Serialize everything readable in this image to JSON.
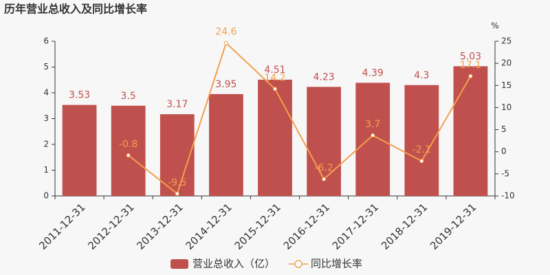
{
  "chart_data": {
    "type": "bar",
    "title": "历年营业总收入及同比增长率",
    "categories": [
      "2011-12-31",
      "2012-12-31",
      "2013-12-31",
      "2014-12-31",
      "2015-12-31",
      "2016-12-31",
      "2017-12-31",
      "2018-12-31",
      "2019-12-31"
    ],
    "series": [
      {
        "name": "营业总收入（亿）",
        "type": "bar",
        "color": "#c0504d",
        "values": [
          3.53,
          3.5,
          3.17,
          3.95,
          4.51,
          4.23,
          4.39,
          4.3,
          5.03
        ]
      },
      {
        "name": "同比增长率",
        "type": "line",
        "axis": "y2",
        "color": "#f2a04d",
        "values": [
          null,
          -0.8,
          -9.5,
          24.6,
          14.2,
          -6.2,
          3.7,
          -2.1,
          17.1
        ]
      }
    ],
    "ylim": [
      0,
      6
    ],
    "yticks": [
      0,
      1,
      2,
      3,
      4,
      5,
      6
    ],
    "y2label": "%",
    "y2lim": [
      -10,
      25
    ],
    "y2ticks": [
      -10,
      -5,
      0,
      5,
      10,
      15,
      20,
      25
    ],
    "grid": false
  }
}
